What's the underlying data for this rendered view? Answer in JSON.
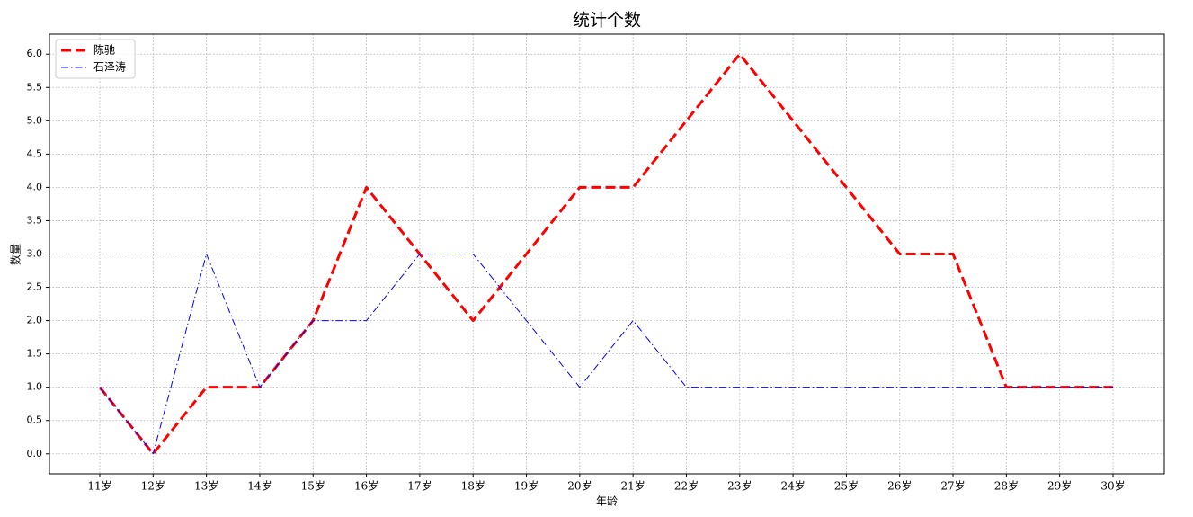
{
  "chart_data": {
    "type": "line",
    "title": "统计个数",
    "x_label": "年龄",
    "y_label": "数量",
    "categories": [
      "11岁",
      "12岁",
      "13岁",
      "14岁",
      "15岁",
      "16岁",
      "17岁",
      "18岁",
      "19岁",
      "20岁",
      "21岁",
      "22岁",
      "23岁",
      "24岁",
      "25岁",
      "26岁",
      "27岁",
      "28岁",
      "29岁",
      "30岁"
    ],
    "series": [
      {
        "name": "陈驰",
        "color": "#ff0000",
        "style": "dashed",
        "values": [
          1,
          0,
          1,
          1,
          2,
          4,
          3,
          2,
          3,
          4,
          4,
          5,
          6,
          5,
          4,
          3,
          3,
          1,
          1,
          1
        ]
      },
      {
        "name": "石泽涛",
        "color": "#0000ff",
        "style": "dashdot",
        "values": [
          1,
          0,
          3,
          1,
          2,
          2,
          3,
          3,
          2,
          1,
          2,
          1,
          1,
          1,
          1,
          1,
          1,
          1,
          1,
          1
        ]
      }
    ],
    "ylim": [
      -0.3,
      6.3
    ],
    "yticks": [
      {
        "value": 0,
        "label": "0.0"
      },
      {
        "value": 0.5,
        "label": "0.5"
      },
      {
        "value": 1,
        "label": "1.0"
      },
      {
        "value": 1.5,
        "label": "1.5"
      },
      {
        "value": 2,
        "label": "2.0"
      },
      {
        "value": 2.5,
        "label": "2.5"
      },
      {
        "value": 3,
        "label": "3.0"
      },
      {
        "value": 3.5,
        "label": "3.5"
      },
      {
        "value": 4,
        "label": "4.0"
      },
      {
        "value": 4.5,
        "label": "4.5"
      },
      {
        "value": 5,
        "label": "5.0"
      },
      {
        "value": 5.5,
        "label": "5.5"
      },
      {
        "value": 6,
        "label": "6.0"
      }
    ],
    "grid": true,
    "legend": "upper left"
  }
}
